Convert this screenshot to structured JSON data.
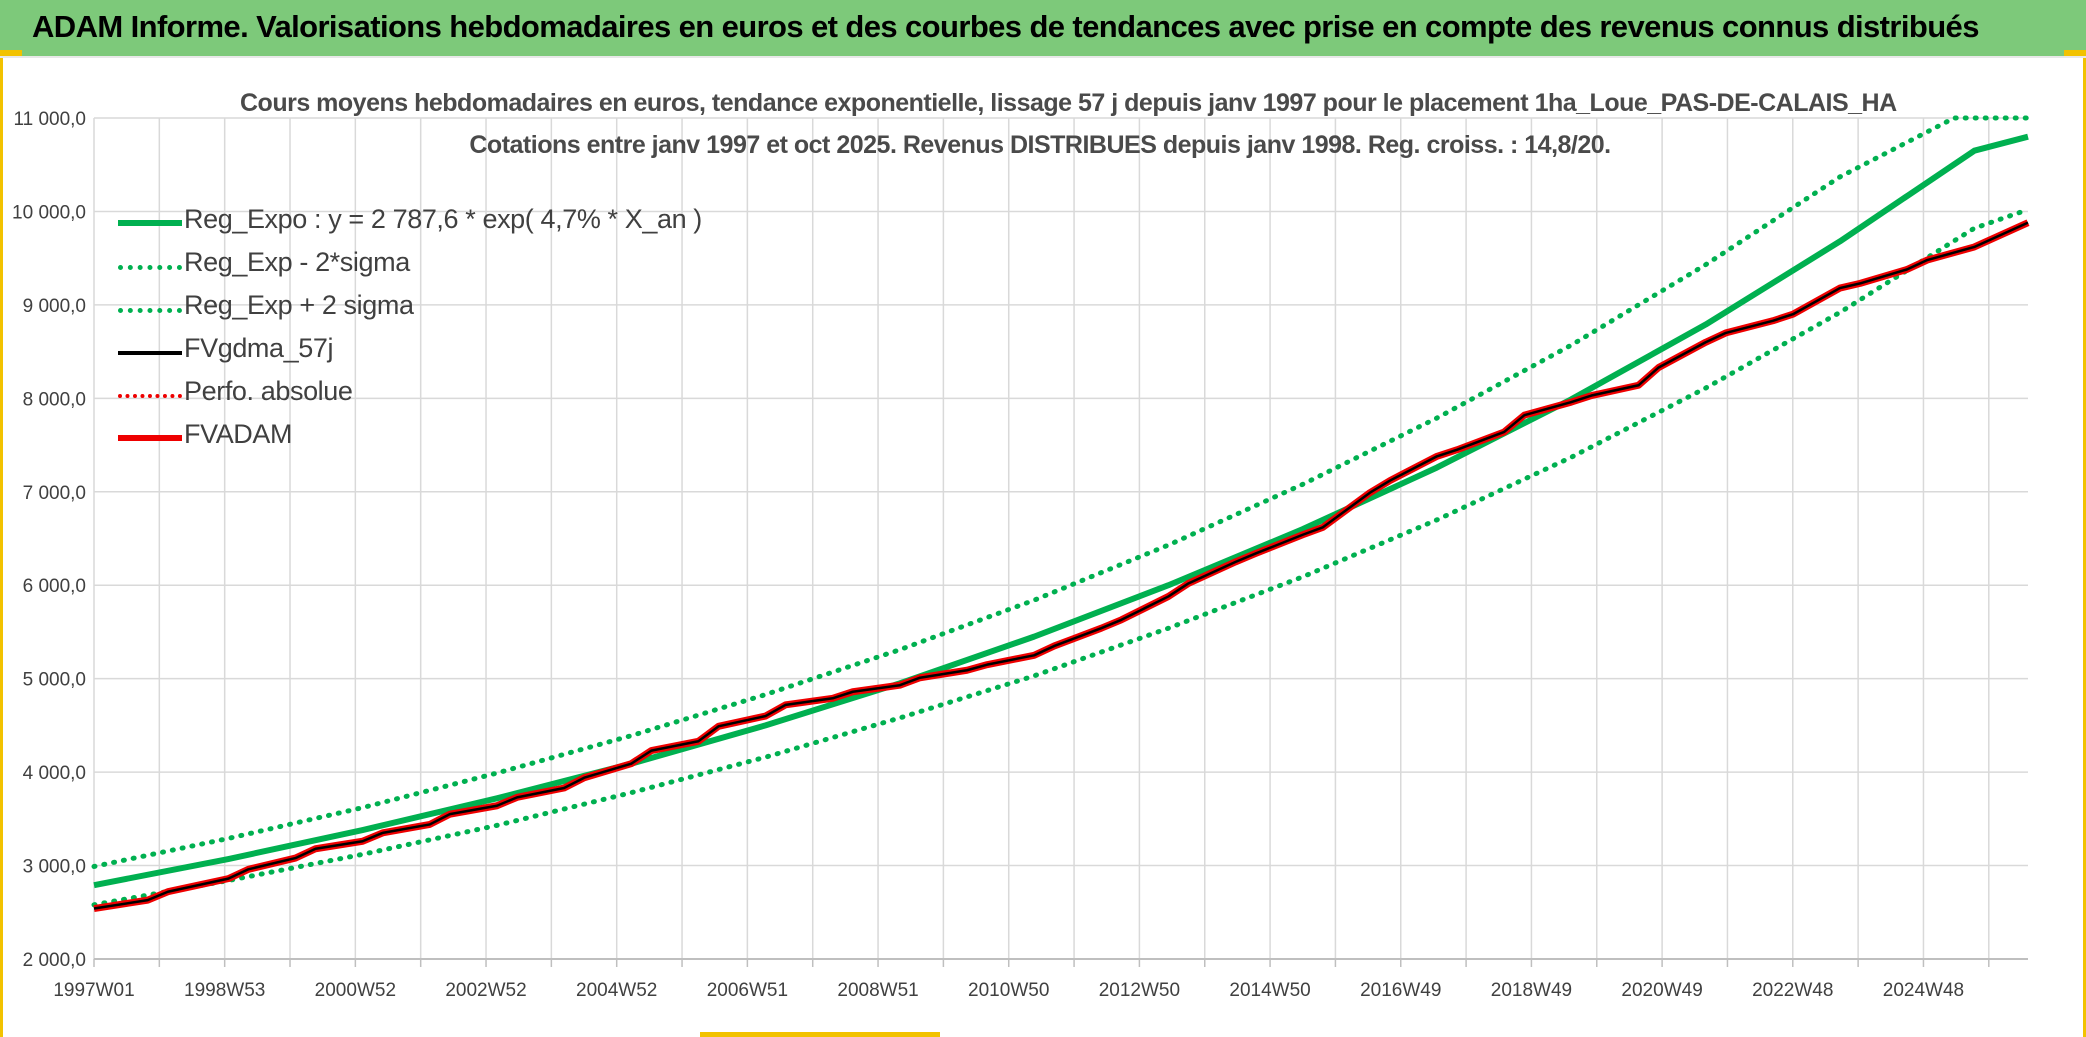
{
  "banner": {
    "title": "ADAM Informe. Valorisations hebdomadaires en euros et des courbes de tendances avec prise en compte des revenus connus distribués"
  },
  "colors": {
    "banner_bg": "#7dc97a",
    "accent_yellow": "#f2c200",
    "reg_green": "#00b050",
    "fvadam_red": "#ee0000",
    "fvgdma_black": "#000000",
    "grid": "#d9d9d9"
  },
  "chart_data": {
    "type": "line",
    "title": "Cours moyens hebdomadaires en euros, tendance exponentielle, lissage 57 j depuis janv 1997 pour le placement 1ha_Loue_PAS-DE-CALAIS_HA",
    "subtitle": "Cotations entre janv 1997 et oct 2025. Revenus DISTRIBUES depuis janv 1998. Reg. croiss. : 14,8/20.",
    "xlabel": "",
    "ylabel": "",
    "ylim": [
      2000,
      11000
    ],
    "y_ticks": [
      "2 000,0",
      "3 000,0",
      "4 000,0",
      "5 000,0",
      "6 000,0",
      "7 000,0",
      "8 000,0",
      "9 000,0",
      "10 000,0",
      "11 000,0"
    ],
    "x_tick_labels": [
      "1997W01",
      "1998W53",
      "2000W52",
      "2002W52",
      "2004W52",
      "2006W51",
      "2008W51",
      "2010W50",
      "2012W50",
      "2014W50",
      "2016W49",
      "2018W49",
      "2020W49",
      "2022W48",
      "2024W48"
    ],
    "x_range": [
      1997.0,
      2025.8
    ],
    "grid": true,
    "legend_position": "top-left",
    "series": [
      {
        "name": "Reg_Expo : y = 2 787,6 * exp( 4,7% *  X_an )",
        "style": "solid-thick",
        "color": "#00b050",
        "x": [
          1997,
          1999,
          2001,
          2003,
          2005,
          2007,
          2009,
          2011,
          2013,
          2015,
          2017,
          2019,
          2021,
          2023,
          2025,
          2025.8
        ],
        "values": [
          2790,
          3070,
          3380,
          3720,
          4090,
          4500,
          4950,
          5450,
          6000,
          6600,
          7260,
          7990,
          8790,
          9680,
          10650,
          10800
        ]
      },
      {
        "name": "Reg_Exp - 2*sigma",
        "style": "dotted",
        "color": "#00b050",
        "x": [
          1997,
          1999,
          2001,
          2003,
          2005,
          2007,
          2009,
          2011,
          2013,
          2015,
          2017,
          2019,
          2021,
          2023,
          2025,
          2025.8
        ],
        "values": [
          2580,
          2840,
          3120,
          3430,
          3780,
          4160,
          4580,
          5030,
          5540,
          6090,
          6700,
          7370,
          8110,
          8920,
          9820,
          10020
        ]
      },
      {
        "name": "Reg_Exp + 2 sigma",
        "style": "dotted",
        "color": "#00b050",
        "x": [
          1997,
          1999,
          2001,
          2003,
          2005,
          2007,
          2009,
          2011,
          2013,
          2015,
          2017,
          2019,
          2021,
          2023,
          2024.7,
          2025.8
        ],
        "values": [
          2990,
          3290,
          3620,
          3990,
          4390,
          4830,
          5310,
          5840,
          6430,
          7080,
          7790,
          8570,
          9430,
          10370,
          11000,
          11000
        ]
      },
      {
        "name": "FVgdma_57j",
        "style": "solid",
        "color": "#000000",
        "x": [
          1997.0,
          1997.8,
          1998.1,
          1999.0,
          1999.3,
          2000.0,
          2000.3,
          2001.0,
          2001.3,
          2002.0,
          2002.3,
          2003.0,
          2003.3,
          2004.0,
          2004.3,
          2005.0,
          2005.3,
          2006.0,
          2006.3,
          2007.0,
          2007.3,
          2008.0,
          2008.3,
          2009.0,
          2009.3,
          2010.0,
          2010.3,
          2011.0,
          2011.3,
          2012.0,
          2012.3,
          2013.0,
          2013.3,
          2014.0,
          2014.3,
          2015.0,
          2015.3,
          2016.0,
          2016.3,
          2017.0,
          2017.3,
          2018.0,
          2018.3,
          2019.0,
          2019.3,
          2020.0,
          2020.3,
          2021.0,
          2021.3,
          2022.0,
          2022.3,
          2023.0,
          2023.3,
          2024.0,
          2024.3,
          2025.0,
          2025.8
        ],
        "values": [
          2540,
          2630,
          2720,
          2860,
          2960,
          3080,
          3180,
          3260,
          3350,
          3440,
          3550,
          3640,
          3730,
          3830,
          3940,
          4090,
          4230,
          4330,
          4490,
          4600,
          4720,
          4790,
          4860,
          4930,
          5010,
          5090,
          5150,
          5250,
          5350,
          5540,
          5630,
          5880,
          6020,
          6250,
          6340,
          6540,
          6620,
          6990,
          7120,
          7380,
          7450,
          7640,
          7820,
          7960,
          8030,
          8140,
          8330,
          8600,
          8700,
          8830,
          8900,
          9180,
          9230,
          9380,
          9480,
          9620,
          9880
        ]
      },
      {
        "name": "Perfo. absolue",
        "style": "dotted",
        "color": "#ee0000",
        "x": [],
        "values": []
      },
      {
        "name": "FVADAM",
        "style": "solid-thick",
        "color": "#ee0000",
        "x": [
          1997.0,
          1997.8,
          1998.1,
          1999.0,
          1999.3,
          2000.0,
          2000.3,
          2001.0,
          2001.3,
          2002.0,
          2002.3,
          2003.0,
          2003.3,
          2004.0,
          2004.3,
          2005.0,
          2005.3,
          2006.0,
          2006.3,
          2007.0,
          2007.3,
          2008.0,
          2008.3,
          2009.0,
          2009.3,
          2010.0,
          2010.3,
          2011.0,
          2011.3,
          2012.0,
          2012.3,
          2013.0,
          2013.3,
          2014.0,
          2014.3,
          2015.0,
          2015.3,
          2016.0,
          2016.3,
          2017.0,
          2017.3,
          2018.0,
          2018.3,
          2019.0,
          2019.3,
          2020.0,
          2020.3,
          2021.0,
          2021.3,
          2022.0,
          2022.3,
          2023.0,
          2023.3,
          2024.0,
          2024.3,
          2025.0,
          2025.8
        ],
        "values": [
          2540,
          2630,
          2720,
          2860,
          2960,
          3080,
          3180,
          3260,
          3350,
          3440,
          3550,
          3640,
          3730,
          3830,
          3940,
          4090,
          4230,
          4330,
          4490,
          4600,
          4720,
          4790,
          4860,
          4930,
          5010,
          5090,
          5150,
          5250,
          5350,
          5540,
          5630,
          5880,
          6020,
          6250,
          6340,
          6540,
          6620,
          6990,
          7120,
          7380,
          7450,
          7640,
          7820,
          7960,
          8030,
          8140,
          8330,
          8600,
          8700,
          8830,
          8900,
          9180,
          9230,
          9380,
          9480,
          9620,
          9880
        ]
      }
    ]
  }
}
